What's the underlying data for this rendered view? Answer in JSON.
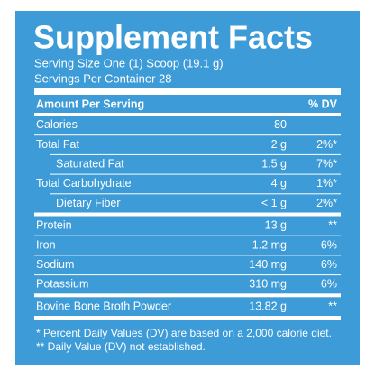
{
  "title": "Supplement Facts",
  "serving_size": "Serving Size One (1) Scoop (19.1 g)",
  "servings_per_container": "Servings Per Container 28",
  "header": {
    "amount": "Amount Per Serving",
    "dv": "% DV"
  },
  "sections": [
    [
      {
        "name": "Calories",
        "amount": "80"
      },
      {
        "name": "Total Fat",
        "amount": "2 g",
        "dv": "2%*"
      },
      {
        "name": "Saturated Fat",
        "amount": "1.5 g",
        "dv": "7%*",
        "indent": true
      },
      {
        "name": "Total Carbohydrate",
        "amount": "4 g",
        "dv": "1%*"
      },
      {
        "name": "Dietary Fiber",
        "amount": "< 1 g",
        "dv": "2%*",
        "indent": true
      }
    ],
    [
      {
        "name": "Protein",
        "amount": "13 g",
        "dv": "**"
      },
      {
        "name": "Iron",
        "amount": "1.2 mg",
        "dv": "6%"
      },
      {
        "name": "Sodium",
        "amount": "140 mg",
        "dv": "6%"
      },
      {
        "name": "Potassium",
        "amount": "310 mg",
        "dv": "6%"
      }
    ],
    [
      {
        "name": "Bovine Bone Broth Powder",
        "amount": "13.82 g",
        "dv": "**"
      }
    ]
  ],
  "footnotes": [
    "* Percent Daily Values (DV) are based on a 2,000 calorie diet.",
    "** Daily Value (DV) not established."
  ]
}
